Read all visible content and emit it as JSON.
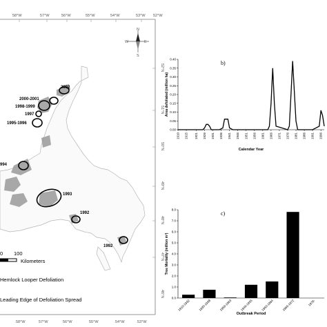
{
  "map": {
    "lon_labels_top": [
      "58°W",
      "57°W",
      "56°W",
      "55°W",
      "54°W",
      "53°W",
      "52°W"
    ],
    "lon_labels_bottom": [
      "58°W",
      "57°W",
      "56°W",
      "55°W",
      "54°W",
      "53°W"
    ],
    "lat_labels_right": [
      "52°N",
      "51°N",
      "50°N",
      "49°N",
      "48°N",
      "47°N",
      "46°N"
    ],
    "year_labels": [
      "2002",
      "2000-2001",
      "1998-1999",
      "1997",
      "1995-1996",
      "994",
      "1993",
      "1992",
      "1992"
    ],
    "scale": {
      "zero": "0",
      "hundred": "100",
      "unit": "Kilometers"
    },
    "north_arrow": {
      "n": "N",
      "s": "S",
      "e": "E",
      "w": "W"
    },
    "legend": {
      "defoliation": "Hemlock Looper Defoliation",
      "leading_edge": "Leading Edge of Defoliation Spread"
    }
  },
  "chart_data": [
    {
      "type": "line",
      "panel": "b)",
      "title": "",
      "xlabel": "Calendar Year",
      "ylabel": "Area defoliated (million ha)",
      "ylim": [
        0,
        0.4
      ],
      "yticks": [
        "0.00",
        "0.05",
        "0.10",
        "0.15",
        "0.20",
        "0.25",
        "0.30",
        "0.35",
        "0.40"
      ],
      "xticks": [
        "1910",
        "1915",
        "1921",
        "1926",
        "1931",
        "1936",
        "1941",
        "1946",
        "1951",
        "1956",
        "1961",
        "1966",
        "1971",
        "1976",
        "1981",
        "1986",
        "1991",
        "1996"
      ],
      "series": [
        {
          "name": "",
          "color": "#000000",
          "x": [
            1910,
            1925,
            1926,
            1927,
            1928,
            1929,
            1930,
            1935,
            1937,
            1938,
            1939,
            1940,
            1941,
            1943,
            1961,
            1964,
            1965,
            1966,
            1967,
            1968,
            1969,
            1976,
            1977,
            1978,
            1979,
            1980,
            1981,
            1982,
            1991,
            1995,
            1996,
            1997,
            1998
          ],
          "y": [
            0,
            0,
            0.01,
            0.03,
            0.03,
            0.02,
            0,
            0,
            0.01,
            0.06,
            0.06,
            0.06,
            0.01,
            0,
            0,
            0,
            0.02,
            0.15,
            0.35,
            0.15,
            0.02,
            0,
            0.02,
            0.2,
            0.39,
            0.22,
            0.05,
            0,
            0,
            0.02,
            0.11,
            0.08,
            0.02
          ]
        }
      ]
    },
    {
      "type": "bar",
      "panel": "c)",
      "title": "",
      "xlabel": "Outbreak Period",
      "ylabel": "Tree Mortality (million m³)",
      "ylim": [
        0,
        8.0
      ],
      "yticks": [
        "0.0",
        "1.0",
        "2.0",
        "3.0",
        "4.0",
        "5.0",
        "6.0",
        "7.0",
        "8.0"
      ],
      "categories": [
        "1910-1932",
        "1935-1938",
        "1959-1963",
        "1946-1955",
        "1950-1964",
        "1966-1972",
        "1978-"
      ],
      "values": [
        0.3,
        0.75,
        0.05,
        1.2,
        1.5,
        7.8,
        0
      ]
    }
  ]
}
